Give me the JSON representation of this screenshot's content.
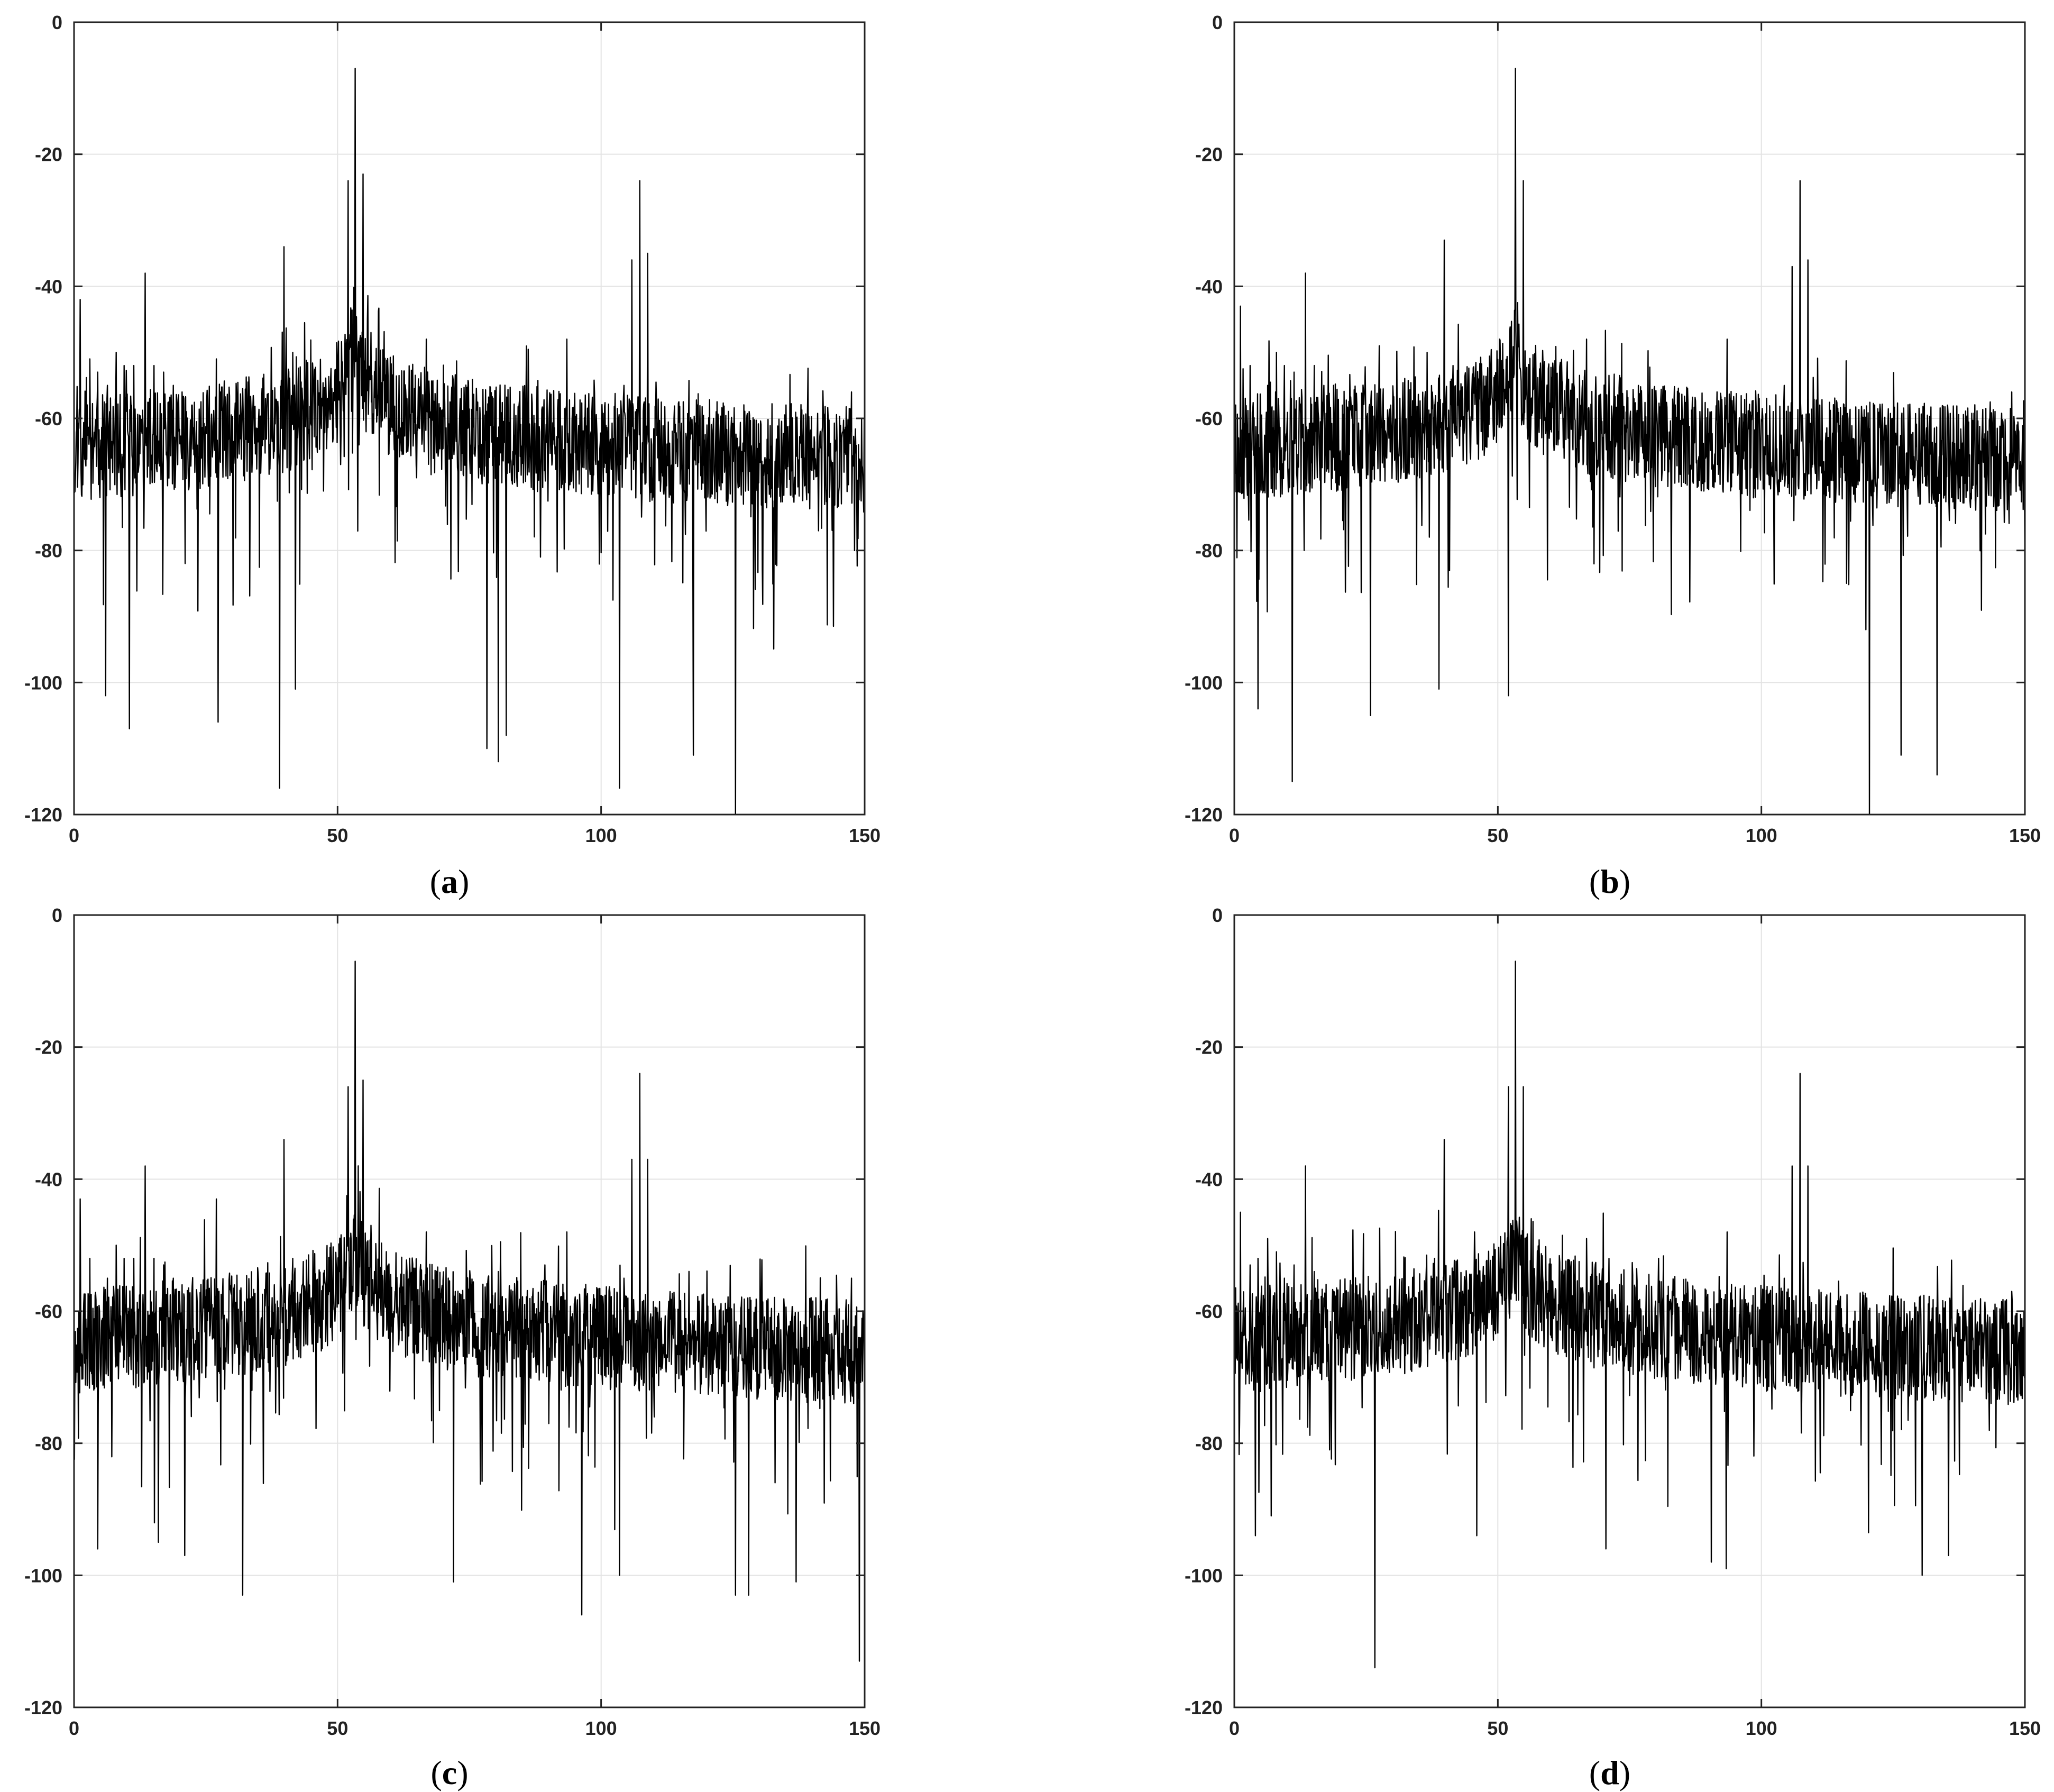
{
  "figure": {
    "panel_labels": [
      {
        "open": "(",
        "letter": "a",
        "close": ")"
      },
      {
        "open": "(",
        "letter": "b",
        "close": ")"
      },
      {
        "open": "(",
        "letter": "c",
        "close": ")"
      },
      {
        "open": "(",
        "letter": "d",
        "close": ")"
      }
    ]
  },
  "chart_data": [
    {
      "type": "line",
      "panel": "a",
      "xlim": [
        0,
        150
      ],
      "ylim": [
        -120,
        0
      ],
      "xticks": [
        0,
        50,
        100,
        150
      ],
      "yticks": [
        0,
        -20,
        -40,
        -60,
        -80,
        -100,
        -120
      ],
      "grid": true,
      "line_color": "#000000",
      "noise_floor": {
        "x": [
          0,
          20,
          40,
          47,
          50,
          60,
          70,
          100,
          110,
          150
        ],
        "y": [
          -84,
          -82,
          -80,
          -77,
          -75,
          -80,
          -84,
          -86,
          -87,
          -90
        ]
      },
      "carrier": {
        "x": 53.3,
        "y": -49
      },
      "spikes": {
        "x": [
          1.2,
          3.0,
          4.5,
          6.3,
          8.0,
          9.5,
          11.3,
          13.5,
          15.2,
          17.0,
          18.8,
          20.5,
          22.3,
          24.0,
          25.8,
          27.0,
          29.3,
          31.0,
          32.8,
          34.5,
          36.3,
          38.0,
          39.8,
          41.5,
          43.3,
          45.0,
          46.8,
          48.5,
          50.3,
          52.0,
          53.3,
          54.8,
          56.3,
          58.0,
          59.8,
          61.5,
          63.3,
          65.0,
          66.8,
          80.5,
          93.5,
          104.3,
          105.8,
          107.3,
          108.8,
          110.3,
          112.0,
          120.0,
          125.5,
          127.0,
          147.5,
          148.8,
          150.0
        ],
        "y": [
          -42,
          -51,
          -53,
          -55,
          -50,
          -52,
          -52,
          -38,
          -52,
          -53,
          -55,
          -56,
          -58,
          -60,
          -65,
          -51,
          -63,
          -66,
          -68,
          -65,
          -57,
          -65,
          -34,
          -50,
          -57,
          -61,
          -60,
          -59,
          -56,
          -24,
          -7,
          -23,
          -47,
          -58,
          -60,
          -63,
          -65,
          -69,
          -48,
          -63,
          -48,
          -55,
          -36,
          -24,
          -35,
          -60,
          -70,
          -65,
          -73,
          -73,
          -56,
          -64,
          -78
        ]
      },
      "dips": {
        "x": [
          6.0,
          10.5,
          27.3,
          39.0,
          42.0,
          78.3,
          80.5,
          82.0,
          103.5,
          117.5,
          125.5
        ],
        "y": [
          -102,
          -107,
          -106,
          -116,
          -101,
          -110,
          -112,
          -108,
          -116,
          -111,
          -125
        ]
      },
      "seed": 11
    },
    {
      "type": "line",
      "panel": "b",
      "xlim": [
        0,
        150
      ],
      "ylim": [
        -120,
        0
      ],
      "xticks": [
        0,
        50,
        100,
        150
      ],
      "yticks": [
        0,
        -20,
        -40,
        -60,
        -80,
        -100,
        -120
      ],
      "grid": true,
      "line_color": "#000000",
      "noise_floor": {
        "x": [
          0,
          20,
          40,
          47,
          50,
          60,
          70,
          100,
          110,
          150
        ],
        "y": [
          -81,
          -80,
          -79,
          -76,
          -74,
          -79,
          -83,
          -84,
          -84,
          -85
        ]
      },
      "carrier": {
        "x": 53.3,
        "y": -49
      },
      "spikes": {
        "x": [
          1.2,
          3.0,
          4.5,
          6.3,
          8.0,
          9.5,
          11.3,
          13.5,
          15.2,
          17.0,
          18.8,
          20.5,
          22.3,
          24.0,
          25.8,
          27.5,
          29.3,
          31.0,
          32.8,
          34.5,
          36.3,
          38.0,
          39.8,
          41.5,
          43.3,
          45.0,
          46.8,
          48.5,
          50.3,
          52.0,
          53.3,
          54.8,
          56.3,
          58.0,
          59.8,
          61.5,
          63.3,
          65.0,
          66.8,
          80.5,
          93.5,
          104.3,
          105.8,
          107.3,
          108.8,
          110.3,
          112.0,
          120.0,
          133.3,
          147.5,
          148.8,
          150.0
        ],
        "y": [
          -43,
          -52,
          -53,
          -55,
          -50,
          -52,
          -53,
          -38,
          -52,
          -55,
          -55,
          -58,
          -60,
          -63,
          -65,
          -49,
          -63,
          -65,
          -67,
          -65,
          -60,
          -58,
          -33,
          -52,
          -57,
          -60,
          -62,
          -58,
          -48,
          -25,
          -7,
          -24,
          -57,
          -60,
          -61,
          -62,
          -63,
          -66,
          -48,
          -63,
          -48,
          -55,
          -37,
          -24,
          -36,
          -62,
          -68,
          -62,
          -65,
          -56,
          -62,
          -82
        ]
      },
      "dips": {
        "x": [
          4.5,
          11.0,
          25.8,
          38.8,
          52.0,
          120.5,
          126.5,
          133.3
        ],
        "y": [
          -104,
          -115,
          -105,
          -101,
          -102,
          -125,
          -111,
          -114
        ]
      },
      "seed": 23
    },
    {
      "type": "line",
      "panel": "c",
      "xlim": [
        0,
        150
      ],
      "ylim": [
        -120,
        0
      ],
      "xticks": [
        0,
        50,
        100,
        150
      ],
      "yticks": [
        0,
        -20,
        -40,
        -60,
        -80,
        -100,
        -120
      ],
      "grid": true,
      "line_color": "#000000",
      "noise_floor": {
        "x": [
          0,
          20,
          40,
          47,
          50,
          60,
          70,
          100,
          110,
          150
        ],
        "y": [
          -77,
          -75,
          -74,
          -72,
          -70,
          -75,
          -78,
          -80,
          -81,
          -84
        ]
      },
      "carrier": {
        "x": 53.3,
        "y": -49
      },
      "spikes": {
        "x": [
          1.2,
          3.0,
          4.5,
          6.3,
          8.0,
          9.5,
          11.3,
          13.5,
          15.2,
          17.0,
          18.8,
          20.5,
          22.3,
          24.0,
          25.8,
          27.0,
          29.3,
          31.0,
          32.8,
          34.5,
          36.3,
          38.0,
          39.8,
          41.5,
          43.3,
          45.0,
          46.8,
          48.5,
          50.3,
          52.0,
          53.3,
          54.8,
          56.3,
          58.0,
          59.8,
          61.5,
          63.3,
          65.0,
          66.8,
          80.5,
          93.5,
          104.3,
          105.8,
          107.3,
          108.8,
          110.3,
          112.0,
          120.0,
          147.5,
          148.8,
          150.0
        ],
        "y": [
          -43,
          -52,
          -53,
          -55,
          -50,
          -52,
          -52,
          -38,
          -52,
          -53,
          -55,
          -56,
          -58,
          -60,
          -63,
          -43,
          -63,
          -65,
          -66,
          -64,
          -57,
          -56,
          -34,
          -52,
          -56,
          -58,
          -60,
          -57,
          -54,
          -26,
          -7,
          -25,
          -47,
          -58,
          -60,
          -62,
          -63,
          -66,
          -48,
          -54,
          -48,
          -55,
          -37,
          -24,
          -37,
          -60,
          -67,
          -67,
          -55,
          -64,
          -78
        ]
      },
      "dips": {
        "x": [
          4.5,
          16.0,
          21.0,
          32.0,
          72.0,
          96.3,
          103.5,
          125.5,
          128.0,
          137.0,
          149.0
        ],
        "y": [
          -96,
          -95,
          -97,
          -103,
          -101,
          -106,
          -100,
          -103,
          -103,
          -101,
          -113
        ]
      },
      "seed": 37
    },
    {
      "type": "line",
      "panel": "d",
      "xlim": [
        0,
        150
      ],
      "ylim": [
        -120,
        0
      ],
      "xticks": [
        0,
        50,
        100,
        150
      ],
      "yticks": [
        0,
        -20,
        -40,
        -60,
        -80,
        -100,
        -120
      ],
      "grid": true,
      "line_color": "#000000",
      "noise_floor": {
        "x": [
          0,
          20,
          40,
          47,
          50,
          60,
          70,
          100,
          110,
          150
        ],
        "y": [
          -71,
          -69,
          -68,
          -69,
          -70,
          -70,
          -71,
          -72,
          -73,
          -74
        ]
      },
      "carrier": {
        "x": 53.3,
        "y": -49
      },
      "spikes": {
        "x": [
          1.2,
          3.0,
          4.5,
          6.3,
          8.0,
          9.5,
          11.3,
          13.5,
          15.2,
          17.0,
          18.8,
          20.5,
          22.3,
          24.0,
          25.8,
          26.7,
          29.3,
          31.0,
          32.8,
          34.5,
          36.3,
          38.0,
          39.8,
          41.5,
          43.3,
          45.0,
          46.8,
          48.5,
          50.3,
          52.0,
          53.3,
          54.8,
          56.3,
          58.0,
          59.8,
          61.5,
          63.3,
          65.0,
          66.8,
          80.5,
          93.5,
          104.3,
          105.8,
          107.3,
          108.8,
          110.3,
          112.0,
          120.0,
          133.3,
          147.5,
          148.8,
          150.0
        ],
        "y": [
          -45,
          -53,
          -52,
          -49,
          -51,
          -55,
          -53,
          -38,
          -54,
          -58,
          -60,
          -62,
          -56,
          -58,
          -60,
          -38,
          -58,
          -60,
          -62,
          -58,
          -56,
          -52,
          -34,
          -54,
          -57,
          -60,
          -59,
          -57,
          -55,
          -26,
          -7,
          -26,
          -46,
          -57,
          -60,
          -59,
          -58,
          -60,
          -49,
          -52,
          -48,
          -55,
          -38,
          -24,
          -38,
          -59,
          -62,
          -58,
          -60,
          -57,
          -64,
          -66
        ]
      },
      "dips": {
        "x": [
          4.0,
          7.0,
          26.7,
          46.0,
          70.5,
          90.5,
          93.3,
          130.5,
          135.5
        ],
        "y": [
          -94,
          -91,
          -114,
          -94,
          -96,
          -98,
          -99,
          -100,
          -97
        ]
      },
      "seed": 53
    }
  ]
}
